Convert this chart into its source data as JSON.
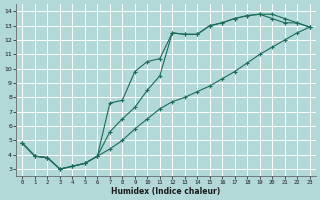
{
  "xlabel": "Humidex (Indice chaleur)",
  "bg_color": "#b2d8d8",
  "grid_color": "#ffffff",
  "line_color": "#1a6b5a",
  "xlim": [
    -0.5,
    23.5
  ],
  "ylim": [
    2.5,
    14.5
  ],
  "xticks": [
    0,
    1,
    2,
    3,
    4,
    5,
    6,
    7,
    8,
    9,
    10,
    11,
    12,
    13,
    14,
    15,
    16,
    17,
    18,
    19,
    20,
    21,
    22,
    23
  ],
  "yticks": [
    3,
    4,
    5,
    6,
    7,
    8,
    9,
    10,
    11,
    12,
    13,
    14
  ],
  "line1_x": [
    0,
    1,
    2,
    3,
    4,
    5,
    6,
    7,
    8,
    9,
    10,
    11,
    12,
    13,
    14,
    15,
    16,
    17,
    18,
    19,
    20,
    21,
    22,
    23
  ],
  "line1_y": [
    4.8,
    3.9,
    3.8,
    3.0,
    3.2,
    3.4,
    3.9,
    4.4,
    5.0,
    5.8,
    6.5,
    7.2,
    7.7,
    8.0,
    8.4,
    8.8,
    9.3,
    9.8,
    10.4,
    11.0,
    11.5,
    12.0,
    12.5,
    12.9
  ],
  "line2_x": [
    0,
    1,
    2,
    3,
    4,
    5,
    6,
    7,
    8,
    9,
    10,
    11,
    12,
    13,
    14,
    15,
    16,
    17,
    18,
    19,
    20,
    21,
    22,
    23
  ],
  "line2_y": [
    4.8,
    3.9,
    3.8,
    3.0,
    3.2,
    3.4,
    3.9,
    7.6,
    7.8,
    9.8,
    10.5,
    10.7,
    12.5,
    12.4,
    12.4,
    13.0,
    13.2,
    13.5,
    13.7,
    13.8,
    13.8,
    13.5,
    13.2,
    12.9
  ],
  "line3_x": [
    0,
    1,
    2,
    3,
    4,
    5,
    6,
    7,
    8,
    9,
    10,
    11,
    12,
    13,
    14,
    15,
    16,
    17,
    18,
    19,
    20,
    21,
    22,
    23
  ],
  "line3_y": [
    4.8,
    3.9,
    3.8,
    3.0,
    3.2,
    3.4,
    3.9,
    5.6,
    6.5,
    7.3,
    8.5,
    9.5,
    12.5,
    12.4,
    12.4,
    13.0,
    13.2,
    13.5,
    13.7,
    13.8,
    13.5,
    13.2,
    13.2,
    12.9
  ]
}
